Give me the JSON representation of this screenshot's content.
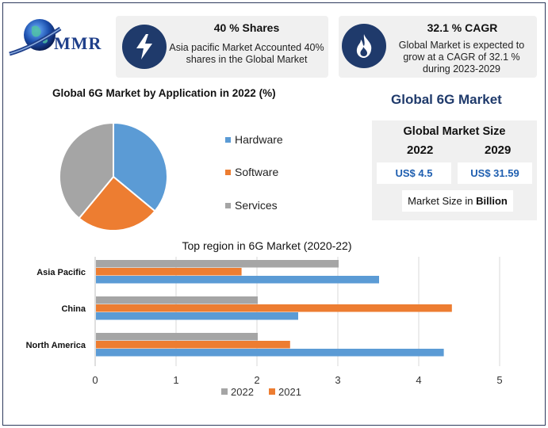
{
  "brand": {
    "name": "MMR"
  },
  "cards": [
    {
      "icon": "lightning-icon",
      "title": "40 % Shares",
      "text": "Asia pacific Market Accounted 40% shares in the Global Market"
    },
    {
      "icon": "flame-icon",
      "title": "32.1 % CAGR",
      "text": "Global Market is expected to grow at a CAGR of 32.1 % during 2023-2029"
    }
  ],
  "market_title": "Global 6G Market",
  "market_size": {
    "title": "Global Market Size",
    "year1": "2022",
    "year2": "2029",
    "value1": "US$ 4.5",
    "value2": "US$ 31.59",
    "unit_prefix": "Market Size in ",
    "unit_bold": "Billion"
  },
  "colors": {
    "hardware": "#5b9bd5",
    "software": "#ed7d31",
    "services": "#a5a5a5",
    "navy": "#1f3a6b"
  },
  "chart_data": [
    {
      "type": "pie",
      "title": "Global 6G Market by Application in 2022 (%)",
      "labels": [
        "Hardware",
        "Software",
        "Services"
      ],
      "values": [
        36,
        25,
        39
      ],
      "colors": [
        "#5b9bd5",
        "#ed7d31",
        "#a5a5a5"
      ],
      "legend": "right"
    },
    {
      "type": "bar",
      "orientation": "horizontal",
      "title": "Top region in 6G Market (2020-22)",
      "categories": [
        "Asia Pacific",
        "China",
        "North America"
      ],
      "series": [
        {
          "name": "2022",
          "values": [
            3.0,
            2.0,
            2.0
          ],
          "color": "#a5a5a5"
        },
        {
          "name": "2021",
          "values": [
            1.8,
            4.4,
            2.4
          ],
          "color": "#ed7d31"
        },
        {
          "name": "",
          "values": [
            3.5,
            2.5,
            4.3
          ],
          "color": "#5b9bd5"
        }
      ],
      "xlim": [
        0,
        5
      ],
      "xticks": [
        "0",
        "1",
        "2",
        "3",
        "4",
        "5"
      ],
      "grid": true,
      "legend": "bottom"
    }
  ]
}
